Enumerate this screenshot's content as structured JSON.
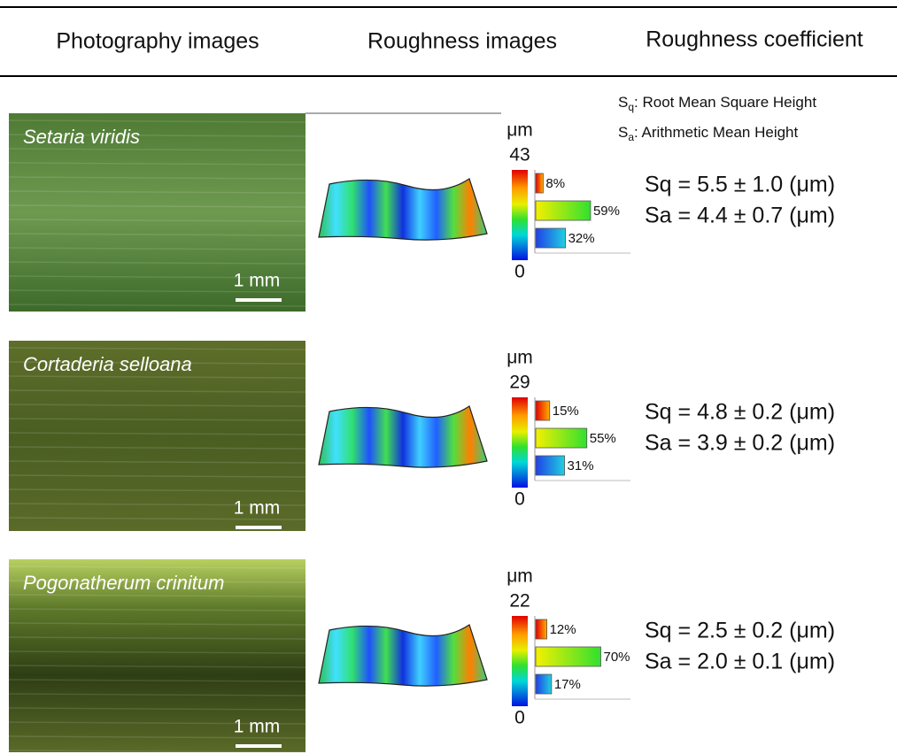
{
  "header": {
    "columns": [
      "Photography images",
      "Roughness images",
      "Roughness coefficient"
    ]
  },
  "legend": [
    {
      "symbol": "S",
      "subscript": "q",
      "text": ": Root Mean Square Height"
    },
    {
      "symbol": "S",
      "subscript": "a",
      "text": ": Arithmetic Mean Height"
    }
  ],
  "rows": [
    {
      "species": "Setaria viridis",
      "scale": "1 mm",
      "unit": "μm",
      "max": 43,
      "min": 0,
      "bars": {
        "values": [
          8,
          59,
          32
        ],
        "value_labels": [
          "8%",
          "59%",
          "32%"
        ]
      },
      "sq": "Sq = 5.5 ± 1.0 (μm)",
      "sa": "Sa = 4.4 ± 0.7 (μm)"
    },
    {
      "species": "Cortaderia selloana",
      "scale": "1 mm",
      "unit": "μm",
      "max": 29,
      "min": 0,
      "bars": {
        "values": [
          15,
          55,
          31
        ],
        "value_labels": [
          "15%",
          "55%",
          "31%"
        ]
      },
      "sq": "Sq = 4.8 ± 0.2 (μm)",
      "sa": "Sa = 3.9 ± 0.2 (μm)"
    },
    {
      "species": "Pogonatherum crinitum",
      "scale": "1 mm",
      "unit": "μm",
      "max": 22,
      "min": 0,
      "bars": {
        "values": [
          12,
          70,
          17
        ],
        "value_labels": [
          "12%",
          "70%",
          "17%"
        ]
      },
      "sq": "Sq = 2.5 ± 0.2 (μm)",
      "sa": "Sa = 2.0 ± 0.1 (μm)"
    }
  ]
}
